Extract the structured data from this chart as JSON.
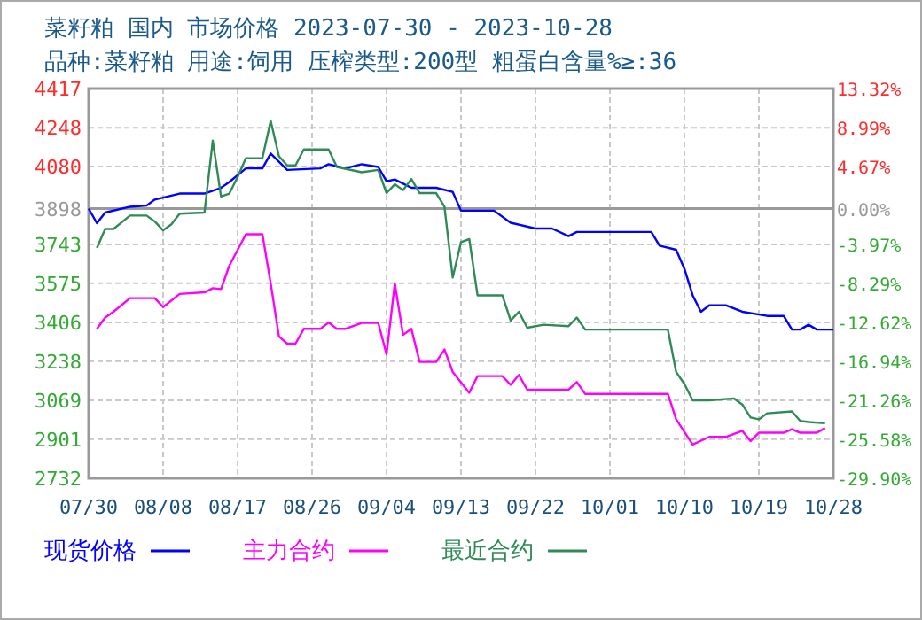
{
  "chart_data": {
    "type": "line",
    "title": "菜籽粕 国内 市场价格 2023-07-30 - 2023-10-28",
    "subtitle": "品种:菜籽粕 用途:饲用 压榨类型:200型 粗蛋白含量%≥:36",
    "xlim": [
      "2023-07-30",
      "2023-10-28"
    ],
    "xticks": [
      {
        "value": "2023-07-30",
        "label": "07/30"
      },
      {
        "value": "2023-08-08",
        "label": "08/08"
      },
      {
        "value": "2023-08-17",
        "label": "08/17"
      },
      {
        "value": "2023-08-26",
        "label": "08/26"
      },
      {
        "value": "2023-09-04",
        "label": "09/04"
      },
      {
        "value": "2023-09-13",
        "label": "09/13"
      },
      {
        "value": "2023-09-22",
        "label": "09/22"
      },
      {
        "value": "2023-10-01",
        "label": "10/01"
      },
      {
        "value": "2023-10-10",
        "label": "10/10"
      },
      {
        "value": "2023-10-19",
        "label": "10/19"
      },
      {
        "value": "2023-10-28",
        "label": "10/28"
      }
    ],
    "ylim": [
      2732,
      4417
    ],
    "yticks": [
      4417,
      4248,
      4080,
      3898,
      3743,
      3575,
      3406,
      3238,
      3069,
      2901,
      2732
    ],
    "y2lim": [
      -29.9,
      13.32
    ],
    "y2ticks": [
      {
        "value": 13.32,
        "label": "13.32%"
      },
      {
        "value": 8.99,
        "label": "8.99%"
      },
      {
        "value": 4.67,
        "label": "4.67%"
      },
      {
        "value": 0,
        "label": "0.00%"
      },
      {
        "value": -3.97,
        "label": "-3.97%"
      },
      {
        "value": -8.29,
        "label": "-8.29%"
      },
      {
        "value": -12.62,
        "label": "-12.62%"
      },
      {
        "value": -16.94,
        "label": "-16.94%"
      },
      {
        "value": -21.26,
        "label": "-21.26%"
      },
      {
        "value": -25.58,
        "label": "-25.58%"
      },
      {
        "value": -29.9,
        "label": "-29.90%"
      }
    ],
    "ref_lines": [
      {
        "axis": "y",
        "value": 3898,
        "color": "#999999"
      }
    ],
    "grid": true,
    "legend": "bottom",
    "series": [
      {
        "name": "现货价格",
        "color": "#0000ff",
        "x": [
          "2023-07-30",
          "2023-07-31",
          "2023-08-01",
          "2023-08-04",
          "2023-08-06",
          "2023-08-07",
          "2023-08-10",
          "2023-08-13",
          "2023-08-15",
          "2023-08-16",
          "2023-08-18",
          "2023-08-20",
          "2023-08-21",
          "2023-08-23",
          "2023-08-27",
          "2023-08-28",
          "2023-08-30",
          "2023-09-01",
          "2023-09-03",
          "2023-09-04",
          "2023-09-05",
          "2023-09-07",
          "2023-09-10",
          "2023-09-12",
          "2023-09-13",
          "2023-09-17",
          "2023-09-19",
          "2023-09-22",
          "2023-09-24",
          "2023-09-26",
          "2023-09-27",
          "2023-10-06",
          "2023-10-07",
          "2023-10-09",
          "2023-10-10",
          "2023-10-11",
          "2023-10-12",
          "2023-10-13",
          "2023-10-15",
          "2023-10-17",
          "2023-10-20",
          "2023-10-22",
          "2023-10-23",
          "2023-10-24",
          "2023-10-25",
          "2023-10-26",
          "2023-10-28"
        ],
        "values": [
          3898,
          3835,
          3881,
          3906,
          3911,
          3937,
          3963,
          3963,
          3988,
          4013,
          4072,
          4072,
          4136,
          4065,
          4072,
          4090,
          4072,
          4090,
          4078,
          4016,
          4024,
          3988,
          3988,
          3970,
          3889,
          3889,
          3837,
          3812,
          3812,
          3779,
          3797,
          3797,
          3738,
          3720,
          3638,
          3523,
          3452,
          3480,
          3480,
          3452,
          3434,
          3434,
          3375,
          3375,
          3396,
          3375,
          3375
        ]
      },
      {
        "name": "主力合约",
        "color": "#ff00ff",
        "x": [
          "2023-07-31",
          "2023-08-01",
          "2023-08-02",
          "2023-08-04",
          "2023-08-07",
          "2023-08-08",
          "2023-08-10",
          "2023-08-13",
          "2023-08-14",
          "2023-08-15",
          "2023-08-16",
          "2023-08-18",
          "2023-08-20",
          "2023-08-21",
          "2023-08-22",
          "2023-08-23",
          "2023-08-24",
          "2023-08-25",
          "2023-08-27",
          "2023-08-28",
          "2023-08-29",
          "2023-08-30",
          "2023-09-01",
          "2023-09-03",
          "2023-09-04",
          "2023-09-05",
          "2023-09-06",
          "2023-09-07",
          "2023-09-08",
          "2023-09-10",
          "2023-09-11",
          "2023-09-12",
          "2023-09-14",
          "2023-09-15",
          "2023-09-18",
          "2023-09-19",
          "2023-09-20",
          "2023-09-21",
          "2023-09-26",
          "2023-09-27",
          "2023-09-28",
          "2023-10-08",
          "2023-10-09",
          "2023-10-11",
          "2023-10-13",
          "2023-10-15",
          "2023-10-17",
          "2023-10-18",
          "2023-10-19",
          "2023-10-22",
          "2023-10-23",
          "2023-10-24",
          "2023-10-26",
          "2023-10-27"
        ],
        "values": [
          3378,
          3427,
          3452,
          3511,
          3511,
          3472,
          3529,
          3536,
          3554,
          3550,
          3651,
          3787,
          3787,
          3575,
          3345,
          3314,
          3314,
          3378,
          3378,
          3406,
          3378,
          3378,
          3404,
          3404,
          3268,
          3575,
          3352,
          3378,
          3235,
          3235,
          3289,
          3192,
          3102,
          3174,
          3174,
          3136,
          3179,
          3115,
          3115,
          3148,
          3097,
          3097,
          2987,
          2878,
          2911,
          2911,
          2937,
          2893,
          2929,
          2929,
          2944,
          2929,
          2929,
          2949
        ]
      },
      {
        "name": "最近合约",
        "color": "#2e8b57",
        "x": [
          "2023-07-31",
          "2023-08-01",
          "2023-08-02",
          "2023-08-04",
          "2023-08-06",
          "2023-08-07",
          "2023-08-08",
          "2023-08-09",
          "2023-08-10",
          "2023-08-13",
          "2023-08-14",
          "2023-08-15",
          "2023-08-16",
          "2023-08-17",
          "2023-08-18",
          "2023-08-20",
          "2023-08-21",
          "2023-08-22",
          "2023-08-23",
          "2023-08-24",
          "2023-08-25",
          "2023-08-28",
          "2023-08-29",
          "2023-09-01",
          "2023-09-03",
          "2023-09-04",
          "2023-09-05",
          "2023-09-06",
          "2023-09-07",
          "2023-09-08",
          "2023-09-10",
          "2023-09-11",
          "2023-09-12",
          "2023-09-13",
          "2023-09-14",
          "2023-09-15",
          "2023-09-18",
          "2023-09-19",
          "2023-09-20",
          "2023-09-21",
          "2023-09-23",
          "2023-09-26",
          "2023-09-27",
          "2023-09-28",
          "2023-10-08",
          "2023-10-09",
          "2023-10-10",
          "2023-10-11",
          "2023-10-13",
          "2023-10-16",
          "2023-10-17",
          "2023-10-18",
          "2023-10-19",
          "2023-10-20",
          "2023-10-23",
          "2023-10-24",
          "2023-10-25",
          "2023-10-27"
        ],
        "values": [
          3728,
          3810,
          3810,
          3868,
          3868,
          3842,
          3804,
          3830,
          3876,
          3881,
          4192,
          3950,
          3963,
          4034,
          4116,
          4116,
          4277,
          4124,
          4085,
          4085,
          4154,
          4154,
          4078,
          4055,
          4065,
          3965,
          4003,
          3978,
          4026,
          3965,
          3965,
          3906,
          3600,
          3753,
          3766,
          3523,
          3523,
          3414,
          3452,
          3383,
          3396,
          3390,
          3427,
          3375,
          3375,
          3192,
          3140,
          3069,
          3069,
          3077,
          3051,
          2995,
          2987,
          3013,
          3021,
          2980,
          2975,
          2970
        ]
      }
    ]
  }
}
